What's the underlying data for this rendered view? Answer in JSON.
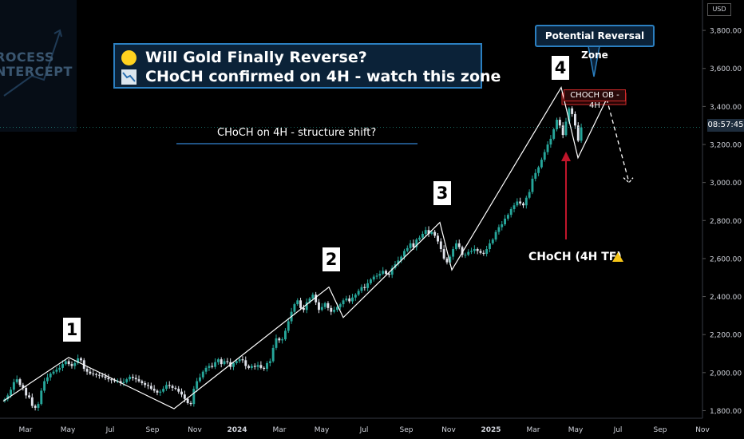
{
  "header": {
    "title_line1": "Will Gold Finally Reverse?",
    "title_line2": "CHoCH confirmed on 4H - watch this zone",
    "title_icon1": "yellow-circle-icon",
    "title_icon2": "chart-decreasing-icon"
  },
  "watermark": {
    "line1": "ROCESS",
    "line2": "NTERCEPT"
  },
  "annotations": {
    "subtitle": "CHoCH on 4H - structure shift?",
    "reversal_zone": "Potential Reversal Zone",
    "choch_label": "CHoCH (4H TF)",
    "ob_label": "CHOCH OB - 4H",
    "waves": [
      "1",
      "2",
      "3",
      "4"
    ]
  },
  "axis": {
    "currency": "USD",
    "current_price_label": "08:57:45"
  },
  "colors": {
    "bull": "#26a69a",
    "bear": "#e0e3eb",
    "accent": "#2b7fc0",
    "arrow": "#c0152a",
    "ob": "#d12a2a"
  },
  "chart_data": {
    "type": "candlestick",
    "x_ticks": [
      "Mar",
      "May",
      "Jul",
      "Sep",
      "Nov",
      "2024",
      "Mar",
      "May",
      "Jul",
      "Sep",
      "Nov",
      "2025",
      "Mar",
      "May",
      "Jul",
      "Sep",
      "Nov"
    ],
    "y_ticks": [
      "1,800.00",
      "2,000.00",
      "2,200.00",
      "2,400.00",
      "2,600.00",
      "2,800.00",
      "3,000.00",
      "3,200.00",
      "3,400.00",
      "3,600.00",
      "3,800.00"
    ],
    "ylim": [
      1760,
      3960
    ],
    "y_scale": "linear",
    "last_price": 3290,
    "wave_path": [
      1850,
      2080,
      1810,
      2450,
      2290,
      2790,
      2540,
      3500,
      3130,
      3440
    ],
    "projected_path": [
      3440,
      3000
    ],
    "ob_zone": [
      3410,
      3470
    ],
    "close_series": [
      1860,
      1880,
      1910,
      1950,
      1965,
      1935,
      1920,
      1880,
      1870,
      1825,
      1815,
      1835,
      1905,
      1955,
      1975,
      1995,
      2005,
      2015,
      2025,
      2045,
      2060,
      2045,
      2035,
      2050,
      2075,
      2065,
      2020,
      2005,
      1995,
      1992,
      1988,
      1985,
      1980,
      1972,
      1965,
      1960,
      1955,
      1955,
      1945,
      1950,
      1965,
      1978,
      1972,
      1965,
      1955,
      1945,
      1935,
      1930,
      1915,
      1905,
      1895,
      1900,
      1915,
      1935,
      1930,
      1920,
      1915,
      1900,
      1885,
      1862,
      1840,
      1835,
      1915,
      1955,
      1975,
      2005,
      2025,
      2035,
      2030,
      2055,
      2070,
      2045,
      2060,
      2055,
      2030,
      2050,
      2060,
      2070,
      2065,
      2035,
      2025,
      2035,
      2030,
      2040,
      2025,
      2020,
      2050,
      2060,
      2130,
      2180,
      2170,
      2175,
      2220,
      2270,
      2320,
      2360,
      2380,
      2340,
      2330,
      2370,
      2390,
      2410,
      2370,
      2330,
      2345,
      2365,
      2340,
      2320,
      2330,
      2345,
      2360,
      2380,
      2390,
      2375,
      2395,
      2410,
      2430,
      2450,
      2445,
      2470,
      2490,
      2505,
      2510,
      2520,
      2535,
      2520,
      2515,
      2550,
      2570,
      2590,
      2610,
      2640,
      2655,
      2680,
      2660,
      2700,
      2710,
      2730,
      2750,
      2730,
      2740,
      2720,
      2690,
      2650,
      2600,
      2580,
      2610,
      2650,
      2680,
      2660,
      2620,
      2620,
      2635,
      2640,
      2650,
      2640,
      2630,
      2625,
      2650,
      2680,
      2700,
      2740,
      2765,
      2780,
      2810,
      2830,
      2860,
      2880,
      2900,
      2890,
      2880,
      2920,
      2950,
      3020,
      3050,
      3080,
      3120,
      3160,
      3200,
      3230,
      3280,
      3330,
      3300,
      3250,
      3320,
      3390,
      3360,
      3300,
      3220,
      3290
    ]
  }
}
